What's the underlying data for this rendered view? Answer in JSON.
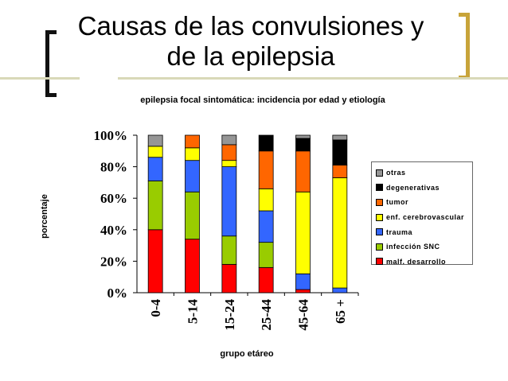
{
  "slide": {
    "title_line1": "Causas de las convulsiones y",
    "title_line2": "de la epilepsia"
  },
  "colors": {
    "bracket_left": "#111111",
    "bracket_right": "#c8a43a",
    "rule": "#d9d9b8"
  },
  "chart_data": {
    "type": "bar",
    "stacked": true,
    "title": "epilepsia focal sintomática: incidencia por edad y etiología",
    "xlabel": "grupo etáreo",
    "ylabel": "porcentaje",
    "ylim": [
      0,
      100
    ],
    "yticks": [
      "0%",
      "20%",
      "40%",
      "60%",
      "80%",
      "100%"
    ],
    "categories": [
      "0-4",
      "5-14",
      "15-24",
      "25-44",
      "45-64",
      "65 +"
    ],
    "legend_position": "right",
    "grid": false,
    "series": [
      {
        "name": "malf. desarrollo",
        "color": "#ff0000",
        "values": [
          40,
          34,
          18,
          16,
          2,
          0
        ]
      },
      {
        "name": "infección SNC",
        "color": "#99cc00",
        "values": [
          31,
          30,
          18,
          16,
          0,
          0
        ]
      },
      {
        "name": "trauma",
        "color": "#3366ff",
        "values": [
          15,
          20,
          44,
          20,
          10,
          3
        ]
      },
      {
        "name": "enf. cerebrovascular",
        "color": "#ffff00",
        "values": [
          7,
          8,
          4,
          14,
          52,
          70
        ]
      },
      {
        "name": "tumor",
        "color": "#ff6600",
        "values": [
          0,
          8,
          10,
          24,
          26,
          8
        ]
      },
      {
        "name": "degenerativas",
        "color": "#000000",
        "values": [
          0,
          0,
          0,
          10,
          8,
          16
        ]
      },
      {
        "name": "otras",
        "color": "#969696",
        "values": [
          7,
          0,
          6,
          0,
          2,
          3
        ]
      }
    ]
  }
}
